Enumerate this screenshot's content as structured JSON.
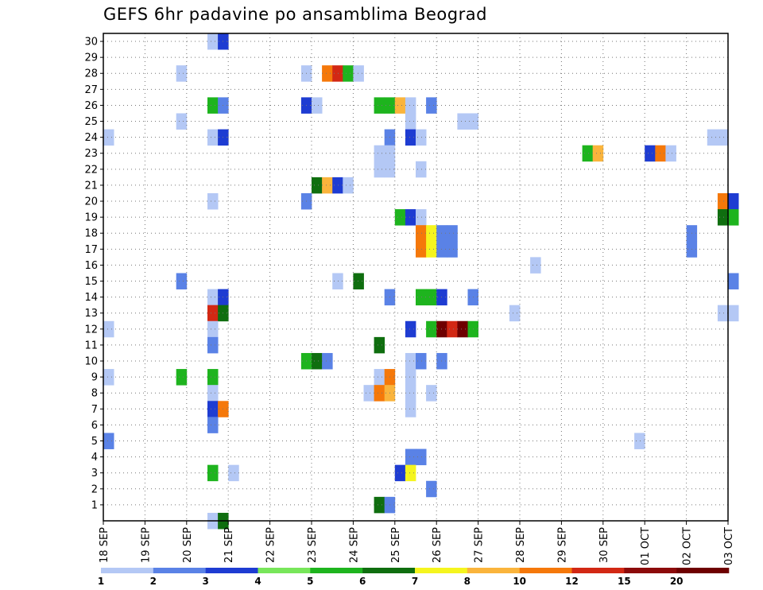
{
  "chart_data": {
    "type": "heatmap",
    "title": "GEFS 6hr padavine po ansamblima Beograd",
    "y_ticks": [
      "1",
      "2",
      "3",
      "4",
      "5",
      "6",
      "7",
      "8",
      "9",
      "10",
      "11",
      "12",
      "13",
      "14",
      "15",
      "16",
      "17",
      "18",
      "19",
      "20",
      "21",
      "22",
      "23",
      "24",
      "25",
      "26",
      "27",
      "28",
      "29",
      "30"
    ],
    "x_ticks": [
      "18 SEP",
      "19 SEP",
      "20 SEP",
      "21 SEP",
      "22 SEP",
      "23 SEP",
      "24 SEP",
      "25 SEP",
      "26 SEP",
      "27 SEP",
      "28 SEP",
      "29 SEP",
      "30 SEP",
      "01 OCT",
      "02 OCT",
      "03 OCT"
    ],
    "grid": true,
    "colorbar": {
      "labels": [
        "1",
        "2",
        "3",
        "4",
        "5",
        "6",
        "7",
        "8",
        "10",
        "12",
        "15",
        "20"
      ],
      "colors": [
        "#b4c8f5",
        "#5a82e6",
        "#1e3cd2",
        "#78e65a",
        "#1eb41e",
        "#0f6e0f",
        "#f5f51e",
        "#fab43c",
        "#f5780a",
        "#d22814",
        "#8c0a0a",
        "#6e0000"
      ]
    },
    "cells": [
      {
        "m": 30,
        "t": "20 SEP 12Z",
        "v": 1
      },
      {
        "m": 30,
        "t": "20 SEP 18Z",
        "v": 3
      },
      {
        "m": 28,
        "t": "19 SEP 18Z",
        "v": 1
      },
      {
        "m": 28,
        "t": "22 SEP 18Z",
        "v": 1
      },
      {
        "m": 28,
        "t": "23 SEP 06Z",
        "v": 10
      },
      {
        "m": 28,
        "t": "23 SEP 12Z",
        "v": 12
      },
      {
        "m": 28,
        "t": "23 SEP 18Z",
        "v": 5
      },
      {
        "m": 28,
        "t": "24 SEP 00Z",
        "v": 1
      },
      {
        "m": 26,
        "t": "20 SEP 12Z",
        "v": 5
      },
      {
        "m": 26,
        "t": "20 SEP 18Z",
        "v": 2
      },
      {
        "m": 26,
        "t": "22 SEP 18Z",
        "v": 3
      },
      {
        "m": 26,
        "t": "23 SEP 00Z",
        "v": 1
      },
      {
        "m": 26,
        "t": "24 SEP 12Z",
        "v": 5
      },
      {
        "m": 26,
        "t": "24 SEP 18Z",
        "v": 5
      },
      {
        "m": 26,
        "t": "25 SEP 00Z",
        "v": 8
      },
      {
        "m": 26,
        "t": "25 SEP 06Z",
        "v": 1
      },
      {
        "m": 26,
        "t": "25 SEP 18Z",
        "v": 2
      },
      {
        "m": 25,
        "t": "19 SEP 18Z",
        "v": 1
      },
      {
        "m": 25,
        "t": "25 SEP 06Z",
        "v": 1
      },
      {
        "m": 25,
        "t": "26 SEP 12Z",
        "v": 1
      },
      {
        "m": 25,
        "t": "26 SEP 18Z",
        "v": 1
      },
      {
        "m": 24,
        "t": "18 SEP 00Z",
        "v": 1
      },
      {
        "m": 24,
        "t": "20 SEP 12Z",
        "v": 1
      },
      {
        "m": 24,
        "t": "20 SEP 18Z",
        "v": 3
      },
      {
        "m": 24,
        "t": "24 SEP 18Z",
        "v": 2
      },
      {
        "m": 24,
        "t": "25 SEP 06Z",
        "v": 3
      },
      {
        "m": 24,
        "t": "25 SEP 12Z",
        "v": 1
      },
      {
        "m": 24,
        "t": "02 OCT 12Z",
        "v": 1
      },
      {
        "m": 24,
        "t": "02 OCT 18Z",
        "v": 1
      },
      {
        "m": 23,
        "t": "24 SEP 12Z",
        "v": 1
      },
      {
        "m": 23,
        "t": "24 SEP 18Z",
        "v": 1
      },
      {
        "m": 23,
        "t": "29 SEP 12Z",
        "v": 5
      },
      {
        "m": 23,
        "t": "29 SEP 18Z",
        "v": 8
      },
      {
        "m": 23,
        "t": "01 OCT 00Z",
        "v": 3
      },
      {
        "m": 23,
        "t": "01 OCT 06Z",
        "v": 10
      },
      {
        "m": 23,
        "t": "01 OCT 12Z",
        "v": 1
      },
      {
        "m": 22,
        "t": "24 SEP 12Z",
        "v": 1
      },
      {
        "m": 22,
        "t": "24 SEP 18Z",
        "v": 1
      },
      {
        "m": 22,
        "t": "25 SEP 12Z",
        "v": 1
      },
      {
        "m": 21,
        "t": "23 SEP 00Z",
        "v": 6
      },
      {
        "m": 21,
        "t": "23 SEP 06Z",
        "v": 8
      },
      {
        "m": 21,
        "t": "23 SEP 12Z",
        "v": 3
      },
      {
        "m": 21,
        "t": "23 SEP 18Z",
        "v": 1
      },
      {
        "m": 20,
        "t": "20 SEP 12Z",
        "v": 1
      },
      {
        "m": 20,
        "t": "22 SEP 18Z",
        "v": 2
      },
      {
        "m": 20,
        "t": "02 OCT 18Z",
        "v": 10
      },
      {
        "m": 20,
        "t": "03 OCT 00Z",
        "v": 3
      },
      {
        "m": 19,
        "t": "25 SEP 00Z",
        "v": 5
      },
      {
        "m": 19,
        "t": "25 SEP 06Z",
        "v": 3
      },
      {
        "m": 19,
        "t": "25 SEP 12Z",
        "v": 1
      },
      {
        "m": 19,
        "t": "02 OCT 18Z",
        "v": 6
      },
      {
        "m": 19,
        "t": "03 OCT 00Z",
        "v": 5
      },
      {
        "m": 18,
        "t": "25 SEP 12Z",
        "v": 10
      },
      {
        "m": 18,
        "t": "25 SEP 18Z",
        "v": 7
      },
      {
        "m": 18,
        "t": "26 SEP 00Z",
        "v": 2
      },
      {
        "m": 18,
        "t": "26 SEP 06Z",
        "v": 2
      },
      {
        "m": 18,
        "t": "02 OCT 00Z",
        "v": 2
      },
      {
        "m": 17,
        "t": "25 SEP 12Z",
        "v": 10
      },
      {
        "m": 17,
        "t": "25 SEP 18Z",
        "v": 7
      },
      {
        "m": 17,
        "t": "26 SEP 00Z",
        "v": 2
      },
      {
        "m": 17,
        "t": "26 SEP 06Z",
        "v": 2
      },
      {
        "m": 17,
        "t": "02 OCT 00Z",
        "v": 2
      },
      {
        "m": 16,
        "t": "28 SEP 06Z",
        "v": 1
      },
      {
        "m": 15,
        "t": "19 SEP 18Z",
        "v": 2
      },
      {
        "m": 15,
        "t": "23 SEP 12Z",
        "v": 1
      },
      {
        "m": 15,
        "t": "24 SEP 00Z",
        "v": 6
      },
      {
        "m": 15,
        "t": "03 OCT 00Z",
        "v": 2
      },
      {
        "m": 14,
        "t": "20 SEP 12Z",
        "v": 1
      },
      {
        "m": 14,
        "t": "20 SEP 18Z",
        "v": 3
      },
      {
        "m": 14,
        "t": "24 SEP 18Z",
        "v": 2
      },
      {
        "m": 14,
        "t": "25 SEP 12Z",
        "v": 5
      },
      {
        "m": 14,
        "t": "25 SEP 18Z",
        "v": 5
      },
      {
        "m": 14,
        "t": "26 SEP 00Z",
        "v": 3
      },
      {
        "m": 14,
        "t": "26 SEP 18Z",
        "v": 2
      },
      {
        "m": 13,
        "t": "20 SEP 12Z",
        "v": 12
      },
      {
        "m": 13,
        "t": "20 SEP 18Z",
        "v": 6
      },
      {
        "m": 13,
        "t": "27 SEP 18Z",
        "v": 1
      },
      {
        "m": 13,
        "t": "02 OCT 18Z",
        "v": 1
      },
      {
        "m": 13,
        "t": "03 OCT 00Z",
        "v": 1
      },
      {
        "m": 12,
        "t": "18 SEP 00Z",
        "v": 1
      },
      {
        "m": 12,
        "t": "20 SEP 12Z",
        "v": 1
      },
      {
        "m": 12,
        "t": "25 SEP 06Z",
        "v": 3
      },
      {
        "m": 12,
        "t": "25 SEP 18Z",
        "v": 5
      },
      {
        "m": 12,
        "t": "26 SEP 00Z",
        "v": 20
      },
      {
        "m": 12,
        "t": "26 SEP 06Z",
        "v": 12
      },
      {
        "m": 12,
        "t": "26 SEP 12Z",
        "v": 20
      },
      {
        "m": 12,
        "t": "26 SEP 18Z",
        "v": 5
      },
      {
        "m": 11,
        "t": "20 SEP 12Z",
        "v": 2
      },
      {
        "m": 11,
        "t": "24 SEP 12Z",
        "v": 6
      },
      {
        "m": 10,
        "t": "22 SEP 18Z",
        "v": 5
      },
      {
        "m": 10,
        "t": "23 SEP 00Z",
        "v": 6
      },
      {
        "m": 10,
        "t": "23 SEP 06Z",
        "v": 2
      },
      {
        "m": 10,
        "t": "25 SEP 06Z",
        "v": 1
      },
      {
        "m": 10,
        "t": "25 SEP 12Z",
        "v": 2
      },
      {
        "m": 10,
        "t": "26 SEP 00Z",
        "v": 2
      },
      {
        "m": 9,
        "t": "18 SEP 00Z",
        "v": 1
      },
      {
        "m": 9,
        "t": "19 SEP 18Z",
        "v": 5
      },
      {
        "m": 9,
        "t": "20 SEP 12Z",
        "v": 5
      },
      {
        "m": 9,
        "t": "24 SEP 12Z",
        "v": 1
      },
      {
        "m": 9,
        "t": "24 SEP 18Z",
        "v": 10
      },
      {
        "m": 9,
        "t": "25 SEP 06Z",
        "v": 1
      },
      {
        "m": 8,
        "t": "20 SEP 12Z",
        "v": 1
      },
      {
        "m": 8,
        "t": "24 SEP 06Z",
        "v": 1
      },
      {
        "m": 8,
        "t": "24 SEP 12Z",
        "v": 10
      },
      {
        "m": 8,
        "t": "24 SEP 18Z",
        "v": 8
      },
      {
        "m": 8,
        "t": "25 SEP 06Z",
        "v": 1
      },
      {
        "m": 8,
        "t": "25 SEP 18Z",
        "v": 1
      },
      {
        "m": 7,
        "t": "20 SEP 12Z",
        "v": 3
      },
      {
        "m": 7,
        "t": "20 SEP 18Z",
        "v": 10
      },
      {
        "m": 7,
        "t": "25 SEP 06Z",
        "v": 1
      },
      {
        "m": 6,
        "t": "20 SEP 12Z",
        "v": 2
      },
      {
        "m": 5,
        "t": "18 SEP 00Z",
        "v": 2
      },
      {
        "m": 5,
        "t": "30 SEP 18Z",
        "v": 1
      },
      {
        "m": 4,
        "t": "25 SEP 06Z",
        "v": 2
      },
      {
        "m": 4,
        "t": "25 SEP 12Z",
        "v": 2
      },
      {
        "m": 3,
        "t": "20 SEP 12Z",
        "v": 5
      },
      {
        "m": 3,
        "t": "21 SEP 00Z",
        "v": 1
      },
      {
        "m": 3,
        "t": "25 SEP 00Z",
        "v": 3
      },
      {
        "m": 3,
        "t": "25 SEP 06Z",
        "v": 7
      },
      {
        "m": 2,
        "t": "25 SEP 18Z",
        "v": 2
      },
      {
        "m": 1,
        "t": "24 SEP 12Z",
        "v": 6
      },
      {
        "m": 1,
        "t": "24 SEP 18Z",
        "v": 2
      },
      {
        "m": 0,
        "t": "20 SEP 12Z",
        "v": 1
      },
      {
        "m": 0,
        "t": "20 SEP 18Z",
        "v": 6
      }
    ]
  }
}
